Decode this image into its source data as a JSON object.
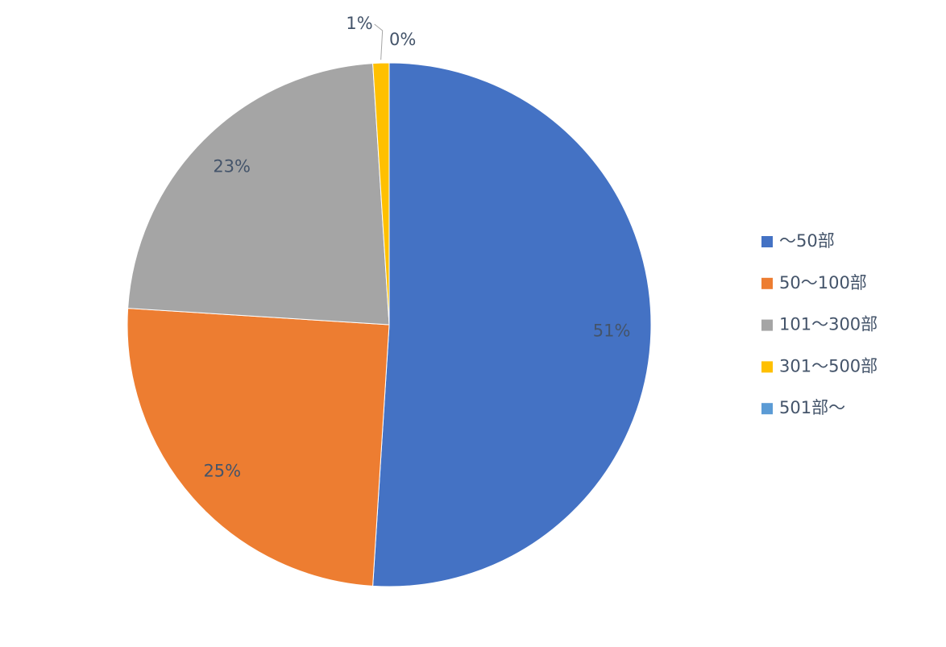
{
  "chart_data": {
    "type": "pie",
    "categories": [
      "～50部",
      "50～100部",
      "101～300部",
      "301～500部",
      "501部～"
    ],
    "values": [
      51,
      25,
      23,
      1,
      0
    ],
    "value_labels": [
      "51%",
      "25%",
      "23%",
      "1%",
      "0%"
    ],
    "colors": [
      "#4472c4",
      "#ed7d31",
      "#a5a5a5",
      "#ffc000",
      "#5b9bd5"
    ],
    "legend": "right"
  }
}
